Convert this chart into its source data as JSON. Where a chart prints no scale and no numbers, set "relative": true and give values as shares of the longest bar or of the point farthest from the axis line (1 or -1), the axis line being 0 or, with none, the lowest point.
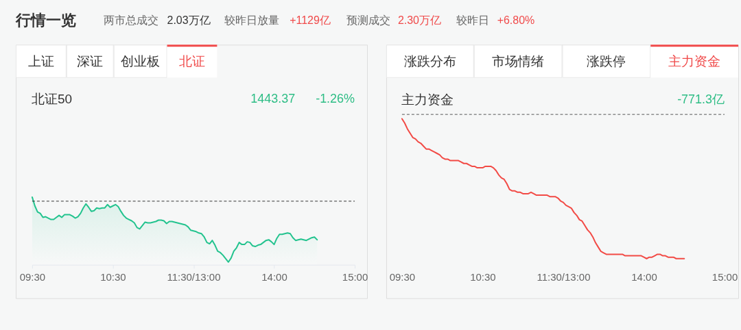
{
  "chart_data": [
    {
      "type": "area",
      "title": "北证50",
      "annotations": [
        "行情一览",
        "两市总成交",
        "2.03万亿",
        "较昨日放量",
        "+1129亿",
        "预测成交",
        "2.30万亿",
        "较昨日",
        "+6.80%",
        "上证",
        "深证",
        "创业板",
        "北证",
        "1443.37",
        "-1.26%"
      ],
      "relative": true,
      "color": "#22c38e",
      "categories": [
        "09:30",
        null,
        null,
        null,
        null,
        null,
        null,
        null,
        null,
        null,
        null,
        null,
        null,
        null,
        null,
        null,
        null,
        null,
        null,
        null,
        null,
        null,
        null,
        null,
        null,
        null,
        null,
        null,
        null,
        null,
        "10:30",
        null,
        null,
        null,
        null,
        null,
        null,
        null,
        null,
        null,
        null,
        null,
        null,
        null,
        null,
        null,
        null,
        null,
        null,
        null,
        null,
        null,
        null,
        null,
        null,
        null,
        null,
        null,
        null,
        null,
        "11:30/13:00",
        null,
        null,
        null,
        null,
        null,
        null,
        null,
        null,
        null,
        null,
        null,
        null,
        null,
        null,
        null,
        null,
        null,
        null,
        null,
        null,
        null,
        null,
        null,
        null,
        null,
        null,
        null,
        null,
        null,
        "14:00",
        null,
        null,
        null,
        null,
        null,
        null,
        null,
        null,
        null,
        null,
        null,
        null,
        null,
        null,
        null,
        null,
        null,
        null,
        null,
        null,
        null,
        null,
        null,
        null,
        null,
        null,
        null,
        null,
        null,
        "15:00"
      ],
      "values": [
        1.0,
        0.87,
        0.78,
        0.76,
        0.7,
        0.71,
        0.69,
        0.67,
        0.67,
        0.7,
        0.73,
        0.7,
        0.74,
        0.74,
        0.74,
        0.72,
        0.69,
        0.71,
        0.76,
        0.84,
        0.9,
        0.85,
        0.79,
        0.8,
        0.84,
        0.83,
        0.84,
        0.84,
        0.89,
        0.85,
        0.87,
        0.89,
        0.86,
        0.79,
        0.73,
        0.69,
        0.67,
        0.65,
        0.62,
        0.55,
        0.53,
        0.58,
        0.63,
        0.62,
        0.62,
        0.63,
        0.64,
        0.66,
        0.66,
        0.65,
        0.61,
        0.64,
        0.64,
        0.63,
        0.62,
        0.61,
        0.6,
        0.59,
        0.56,
        0.51,
        0.5,
        0.49,
        0.47,
        0.46,
        0.41,
        0.33,
        0.31,
        0.36,
        0.29,
        0.2,
        0.18,
        0.14,
        0.09,
        0.04,
        0.1,
        0.2,
        0.25,
        0.33,
        0.3,
        0.3,
        0.34,
        0.33,
        0.28,
        0.27,
        0.29,
        0.3,
        0.33,
        0.36,
        0.37,
        0.34,
        0.3,
        0.39,
        0.45,
        0.45,
        0.46,
        0.47,
        0.46,
        0.4,
        0.36,
        0.37,
        0.38,
        0.37,
        0.36,
        0.38,
        0.4,
        0.41,
        0.37,
        null,
        null,
        null,
        null,
        null,
        null,
        null,
        null,
        null,
        null,
        null,
        null,
        null,
        null
      ],
      "ref_lines": [
        {
          "axis": "y",
          "value": 0.94,
          "line_style": "dashed",
          "color": "#333333"
        }
      ]
    },
    {
      "type": "line",
      "title": "主力资金",
      "annotations": [
        "涨跌分布",
        "市场情绪",
        "涨跌停",
        "主力资金",
        "-771.3亿"
      ],
      "relative": true,
      "color": "#f24a45",
      "categories": [
        "09:30",
        null,
        null,
        null,
        null,
        null,
        null,
        null,
        null,
        null,
        null,
        null,
        null,
        null,
        null,
        null,
        null,
        null,
        null,
        null,
        null,
        null,
        null,
        null,
        null,
        null,
        null,
        null,
        null,
        null,
        "10:30",
        null,
        null,
        null,
        null,
        null,
        null,
        null,
        null,
        null,
        null,
        null,
        null,
        null,
        null,
        null,
        null,
        null,
        null,
        null,
        null,
        null,
        null,
        null,
        null,
        null,
        null,
        null,
        null,
        null,
        "11:30/13:00",
        null,
        null,
        null,
        null,
        null,
        null,
        null,
        null,
        null,
        null,
        null,
        null,
        null,
        null,
        null,
        null,
        null,
        null,
        null,
        null,
        null,
        null,
        null,
        null,
        null,
        null,
        null,
        null,
        null,
        "14:00",
        null,
        null,
        null,
        null,
        null,
        null,
        null,
        null,
        null,
        null,
        null,
        null,
        null,
        null,
        null,
        null,
        null,
        null,
        null,
        null,
        null,
        null,
        null,
        null,
        null,
        null,
        null,
        null,
        null,
        "15:00"
      ],
      "values": [
        -0.03,
        -0.06,
        -0.1,
        -0.13,
        -0.16,
        -0.17,
        -0.19,
        -0.2,
        -0.22,
        -0.24,
        -0.24,
        -0.25,
        -0.26,
        -0.27,
        -0.28,
        -0.3,
        -0.31,
        -0.31,
        -0.32,
        -0.32,
        -0.32,
        -0.32,
        -0.33,
        -0.34,
        -0.34,
        -0.35,
        -0.36,
        -0.36,
        -0.37,
        -0.37,
        -0.37,
        -0.36,
        -0.36,
        -0.36,
        -0.37,
        -0.39,
        -0.42,
        -0.44,
        -0.45,
        -0.48,
        -0.52,
        -0.53,
        -0.53,
        -0.54,
        -0.54,
        -0.55,
        -0.55,
        -0.55,
        -0.54,
        -0.55,
        -0.56,
        -0.56,
        -0.56,
        -0.56,
        -0.56,
        -0.57,
        -0.57,
        -0.57,
        -0.58,
        -0.6,
        -0.61,
        -0.63,
        -0.64,
        -0.65,
        -0.68,
        -0.7,
        -0.73,
        -0.74,
        -0.77,
        -0.8,
        -0.82,
        -0.85,
        -0.89,
        -0.92,
        -0.95,
        -0.96,
        -0.97,
        -0.97,
        -0.97,
        -0.97,
        -0.97,
        -0.97,
        -0.97,
        -0.98,
        -0.98,
        -0.98,
        -0.98,
        -0.98,
        -0.98,
        -0.98,
        -0.99,
        -1.0,
        -0.99,
        -0.99,
        -0.98,
        -0.97,
        -0.97,
        -0.98,
        -0.98,
        -0.99,
        -0.99,
        -0.99,
        -1.0,
        -1.0,
        -1.0,
        -1.0,
        null,
        null,
        null,
        null,
        null,
        null,
        null,
        null,
        null,
        null,
        null,
        null,
        null,
        null,
        null
      ],
      "ref_lines": [
        {
          "axis": "y",
          "value": 0,
          "line_style": "dashed",
          "color": "#555555"
        }
      ]
    }
  ]
}
